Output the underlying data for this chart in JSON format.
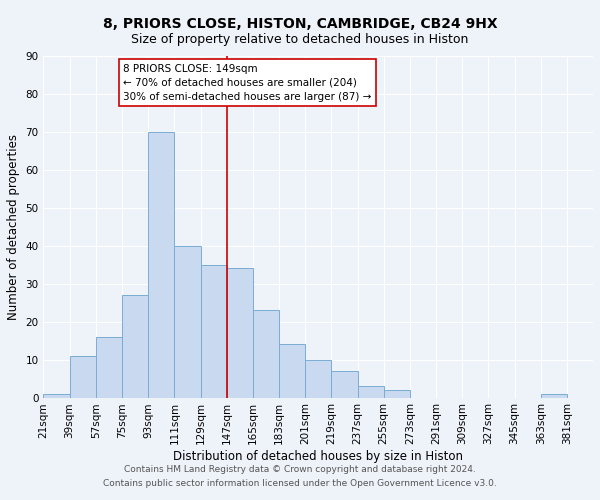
{
  "title": "8, PRIORS CLOSE, HISTON, CAMBRIDGE, CB24 9HX",
  "subtitle": "Size of property relative to detached houses in Histon",
  "xlabel": "Distribution of detached houses by size in Histon",
  "ylabel": "Number of detached properties",
  "bin_starts": [
    21,
    39,
    57,
    75,
    93,
    111,
    129,
    147,
    165,
    183,
    201,
    219,
    237,
    255,
    273,
    291,
    309,
    327,
    345,
    363
  ],
  "bin_width": 18,
  "counts": [
    1,
    11,
    16,
    27,
    70,
    40,
    35,
    34,
    23,
    14,
    10,
    7,
    3,
    2,
    0,
    0,
    0,
    0,
    0,
    1
  ],
  "ylim": [
    0,
    90
  ],
  "yticks": [
    0,
    10,
    20,
    30,
    40,
    50,
    60,
    70,
    80,
    90
  ],
  "xtick_labels": [
    "21sqm",
    "39sqm",
    "57sqm",
    "75sqm",
    "93sqm",
    "111sqm",
    "129sqm",
    "147sqm",
    "165sqm",
    "183sqm",
    "201sqm",
    "219sqm",
    "237sqm",
    "255sqm",
    "273sqm",
    "291sqm",
    "309sqm",
    "327sqm",
    "345sqm",
    "363sqm",
    "381sqm"
  ],
  "bar_color": "#c8d9f0",
  "bar_edge_color": "#7aadd4",
  "vline_x": 147,
  "vline_color": "#cc0000",
  "annotation_title": "8 PRIORS CLOSE: 149sqm",
  "annotation_line1": "← 70% of detached houses are smaller (204)",
  "annotation_line2": "30% of semi-detached houses are larger (87) →",
  "annotation_box_color": "#ffffff",
  "annotation_box_edge_color": "#cc0000",
  "footer1": "Contains HM Land Registry data © Crown copyright and database right 2024.",
  "footer2": "Contains public sector information licensed under the Open Government Licence v3.0.",
  "background_color": "#eef2f9",
  "grid_color": "#ffffff",
  "title_fontsize": 10,
  "subtitle_fontsize": 9,
  "axis_label_fontsize": 8.5,
  "tick_fontsize": 7.5,
  "annotation_fontsize": 7.5,
  "footer_fontsize": 6.5
}
